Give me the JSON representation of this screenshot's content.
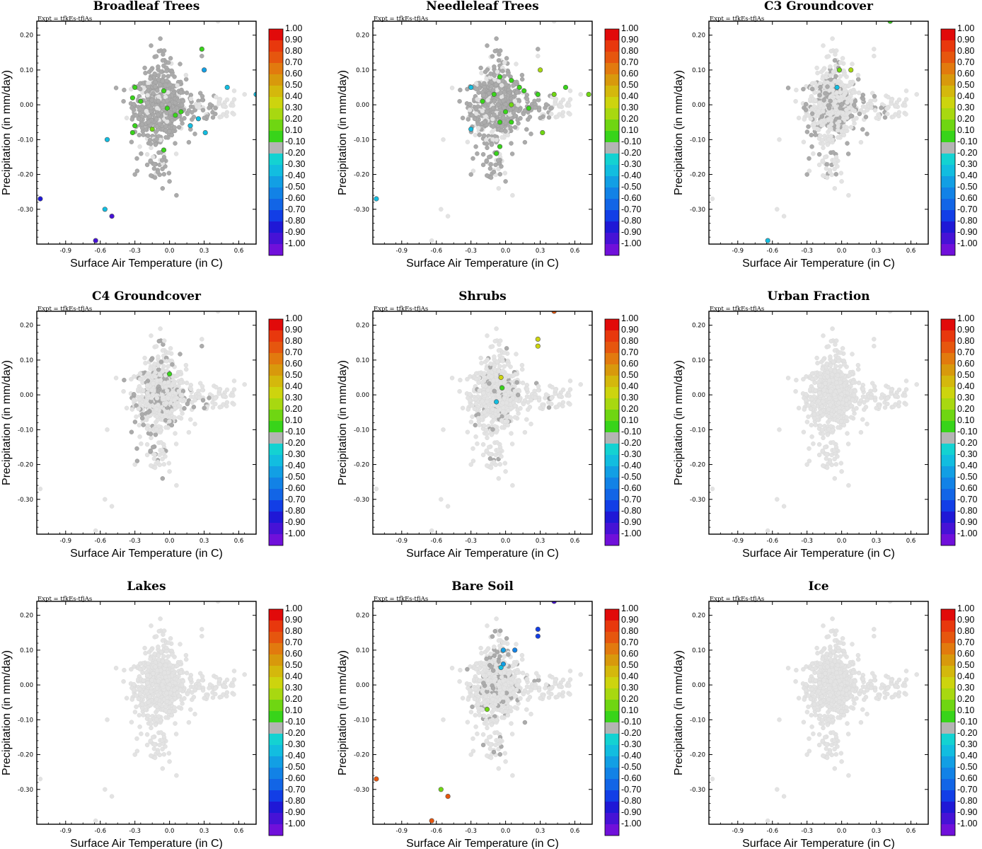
{
  "figure": {
    "expt_label": "Expt = tfkEs-tfjAs",
    "xlabel": "Surface Air Temperature (in C)",
    "ylabel": "Precipitation (in mm/day)",
    "xlim": [
      -1.15,
      0.75
    ],
    "ylim": [
      -0.4,
      0.24
    ],
    "xticks": [
      "-0.9",
      "-0.6",
      "-0.3",
      "0.0",
      "0.3",
      "0.6"
    ],
    "yticks": [
      "-0.30",
      "-0.20",
      "-0.10",
      "0.00",
      "0.10",
      "0.20"
    ],
    "colorbar_labels": [
      "1.00",
      "0.90",
      "0.80",
      "0.70",
      "0.60",
      "0.50",
      "0.40",
      "0.30",
      "0.20",
      "0.10",
      "-0.10",
      "-0.20",
      "-0.30",
      "-0.40",
      "-0.50",
      "-0.60",
      "-0.70",
      "-0.80",
      "-0.90",
      "-1.00"
    ],
    "colorbar_colors": [
      "#e10a0a",
      "#e8380d",
      "#e6560e",
      "#e27a0e",
      "#d8990c",
      "#d4b80c",
      "#cdd40e",
      "#a8d810",
      "#6fd612",
      "#38d41a",
      "#b4b4b4",
      "#14d2d2",
      "#12bde0",
      "#129fe4",
      "#1282e6",
      "#1265e6",
      "#123ee6",
      "#1f18d6",
      "#4612d6",
      "#7010da"
    ]
  },
  "chart_data": [
    {
      "type": "scatter",
      "title": "Broadleaf Trees",
      "xlabel": "Surface Air Temperature (in C)",
      "ylabel": "Precipitation (in mm/day)",
      "colored_points": [
        {
          "x": 0.28,
          "y": 0.16,
          "c": 0.15
        },
        {
          "x": 0.3,
          "y": 0.1,
          "c": -0.35
        },
        {
          "x": -0.3,
          "y": 0.05,
          "c": 0.15
        },
        {
          "x": -0.05,
          "y": 0.04,
          "c": 0.15
        },
        {
          "x": -0.32,
          "y": 0.02,
          "c": 0.15
        },
        {
          "x": -0.25,
          "y": 0.01,
          "c": 0.15
        },
        {
          "x": -0.02,
          "y": -0.01,
          "c": 0.15
        },
        {
          "x": 0.1,
          "y": -0.02,
          "c": 0.15
        },
        {
          "x": 0.05,
          "y": -0.03,
          "c": 0.15
        },
        {
          "x": 0.25,
          "y": -0.04,
          "c": -0.25
        },
        {
          "x": 0.18,
          "y": -0.06,
          "c": -0.3
        },
        {
          "x": 0.31,
          "y": -0.08,
          "c": -0.3
        },
        {
          "x": -0.3,
          "y": -0.06,
          "c": 0.15
        },
        {
          "x": -0.32,
          "y": -0.08,
          "c": 0.15
        },
        {
          "x": -0.15,
          "y": -0.07,
          "c": 0.25
        },
        {
          "x": -0.05,
          "y": -0.13,
          "c": 0.15
        },
        {
          "x": 0.5,
          "y": 0.05,
          "c": -0.25
        },
        {
          "x": 0.75,
          "y": 0.03,
          "c": -0.3
        },
        {
          "x": -0.54,
          "y": -0.1,
          "c": -0.25
        },
        {
          "x": -0.56,
          "y": -0.3,
          "c": -0.3
        },
        {
          "x": -0.5,
          "y": -0.32,
          "c": -0.8
        },
        {
          "x": -0.64,
          "y": -0.39,
          "c": -0.8
        },
        {
          "x": -1.12,
          "y": -0.27,
          "c": -0.75
        }
      ]
    },
    {
      "type": "scatter",
      "title": "Needleleaf Trees",
      "xlabel": "Surface Air Temperature (in C)",
      "ylabel": "Precipitation (in mm/day)",
      "colored_points": [
        {
          "x": 0.3,
          "y": 0.1,
          "c": 0.35
        },
        {
          "x": -0.05,
          "y": 0.08,
          "c": 0.15
        },
        {
          "x": 0.05,
          "y": 0.07,
          "c": 0.15
        },
        {
          "x": 0.12,
          "y": 0.05,
          "c": 0.15
        },
        {
          "x": 0.16,
          "y": 0.04,
          "c": 0.15
        },
        {
          "x": 0.28,
          "y": 0.03,
          "c": 0.15
        },
        {
          "x": 0.42,
          "y": 0.03,
          "c": 0.3
        },
        {
          "x": 0.52,
          "y": 0.05,
          "c": 0.15
        },
        {
          "x": -0.3,
          "y": 0.05,
          "c": -0.25
        },
        {
          "x": -0.1,
          "y": 0.03,
          "c": 0.15
        },
        {
          "x": -0.2,
          "y": 0.01,
          "c": 0.15
        },
        {
          "x": 0.05,
          "y": 0.0,
          "c": 0.25
        },
        {
          "x": 0.0,
          "y": -0.02,
          "c": 0.15
        },
        {
          "x": 0.2,
          "y": -0.01,
          "c": 0.15
        },
        {
          "x": -0.05,
          "y": -0.05,
          "c": 0.15
        },
        {
          "x": 0.05,
          "y": -0.05,
          "c": 0.15
        },
        {
          "x": -0.3,
          "y": -0.07,
          "c": -0.25
        },
        {
          "x": 0.32,
          "y": -0.08,
          "c": 0.3
        },
        {
          "x": -0.05,
          "y": -0.12,
          "c": 0.15
        },
        {
          "x": -0.08,
          "y": -0.14,
          "c": 0.15
        },
        {
          "x": 0.72,
          "y": 0.03,
          "c": 0.3
        },
        {
          "x": -1.12,
          "y": -0.27,
          "c": -0.3
        }
      ]
    },
    {
      "type": "scatter",
      "title": "C3 Groundcover",
      "xlabel": "Surface Air Temperature (in C)",
      "ylabel": "Precipitation (in mm/day)",
      "colored_points": [
        {
          "x": 0.42,
          "y": 0.24,
          "c": 0.15
        },
        {
          "x": -0.02,
          "y": 0.1,
          "c": 0.25
        },
        {
          "x": 0.08,
          "y": 0.1,
          "c": 0.35
        },
        {
          "x": -0.04,
          "y": 0.05,
          "c": -0.25
        },
        {
          "x": -0.64,
          "y": -0.39,
          "c": -0.25
        }
      ]
    },
    {
      "type": "scatter",
      "title": "C4 Groundcover",
      "xlabel": "Surface Air Temperature (in C)",
      "ylabel": "Precipitation (in mm/day)",
      "colored_points": [
        {
          "x": 0.0,
          "y": 0.06,
          "c": 0.15
        }
      ]
    },
    {
      "type": "scatter",
      "title": "Shrubs",
      "xlabel": "Surface Air Temperature (in C)",
      "ylabel": "Precipitation (in mm/day)",
      "colored_points": [
        {
          "x": 0.42,
          "y": 0.24,
          "c": 0.85
        },
        {
          "x": 0.28,
          "y": 0.16,
          "c": 0.45
        },
        {
          "x": 0.28,
          "y": 0.14,
          "c": 0.45
        },
        {
          "x": -0.04,
          "y": 0.05,
          "c": 0.4
        },
        {
          "x": -0.03,
          "y": 0.02,
          "c": 0.15
        },
        {
          "x": -0.08,
          "y": -0.02,
          "c": -0.25
        }
      ]
    },
    {
      "type": "scatter",
      "title": "Urban Fraction",
      "xlabel": "Surface Air Temperature (in C)",
      "ylabel": "Precipitation (in mm/day)",
      "colored_points": []
    },
    {
      "type": "scatter",
      "title": "Lakes",
      "xlabel": "Surface Air Temperature (in C)",
      "ylabel": "Precipitation (in mm/day)",
      "colored_points": []
    },
    {
      "type": "scatter",
      "title": "Bare Soil",
      "xlabel": "Surface Air Temperature (in C)",
      "ylabel": "Precipitation (in mm/day)",
      "colored_points": [
        {
          "x": 0.42,
          "y": 0.24,
          "c": -0.8
        },
        {
          "x": 0.28,
          "y": 0.16,
          "c": -0.65
        },
        {
          "x": 0.28,
          "y": 0.14,
          "c": -0.65
        },
        {
          "x": 0.08,
          "y": 0.1,
          "c": -0.4
        },
        {
          "x": -0.02,
          "y": 0.1,
          "c": -0.35
        },
        {
          "x": -0.02,
          "y": 0.06,
          "c": -0.35
        },
        {
          "x": -0.04,
          "y": 0.05,
          "c": -0.3
        },
        {
          "x": -0.16,
          "y": -0.07,
          "c": 0.2
        },
        {
          "x": -1.12,
          "y": -0.27,
          "c": 0.85
        },
        {
          "x": -0.56,
          "y": -0.3,
          "c": 0.3
        },
        {
          "x": -0.5,
          "y": -0.32,
          "c": 0.85
        },
        {
          "x": -0.64,
          "y": -0.39,
          "c": 0.85
        }
      ]
    },
    {
      "type": "scatter",
      "title": "Ice",
      "xlabel": "Surface Air Temperature (in C)",
      "ylabel": "Precipitation (in mm/day)",
      "colored_points": []
    }
  ]
}
